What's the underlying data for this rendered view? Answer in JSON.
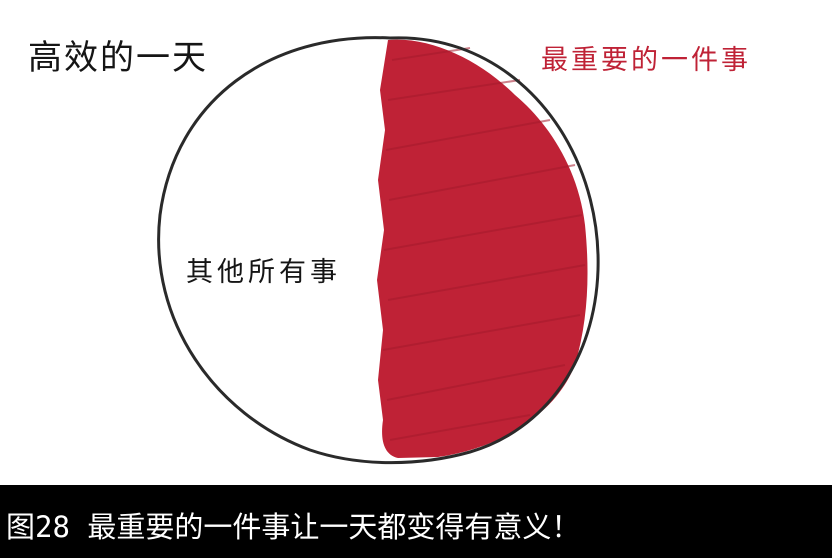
{
  "diagram": {
    "title": "高效的一天",
    "highlight_label": "最重要的一件事",
    "other_label": "其他所有事",
    "colors": {
      "highlight": "#bf2236",
      "outline": "#2a2a2a",
      "text": "#151515",
      "background": "#ffffff"
    }
  },
  "caption": {
    "text": "图28 最重要的一件事让一天都变得有意义！",
    "colors": {
      "background": "#000000",
      "text": "#ffffff"
    }
  }
}
